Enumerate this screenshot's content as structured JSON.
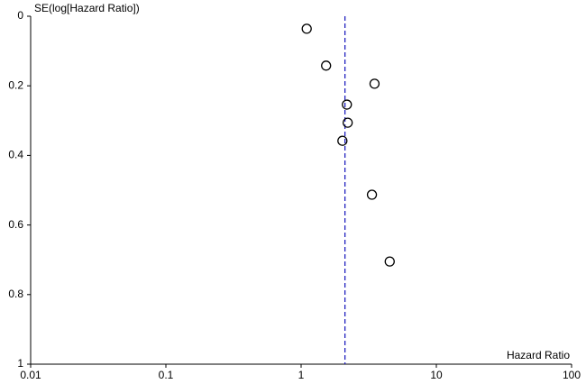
{
  "chart_data": {
    "type": "scatter",
    "x_label": "Hazard Ratio",
    "y_label": "SE(log[Hazard Ratio])",
    "x": [
      1.1,
      1.53,
      3.49,
      2.18,
      2.21,
      2.02,
      3.34,
      4.52
    ],
    "values": [
      0.036,
      0.142,
      0.194,
      0.254,
      0.306,
      0.358,
      0.513,
      0.705
    ],
    "color": "#000000",
    "xscale": "log",
    "y_inverted": true,
    "xlim": [
      0.01,
      100
    ],
    "xticks": [
      0.01,
      0.1,
      1,
      10,
      100
    ],
    "ylim": [
      0,
      1
    ],
    "yticks": [
      0,
      0.2,
      0.4,
      0.6,
      0.8,
      1
    ],
    "reference_line": 2.11,
    "reference_color": "#1f1fbf"
  }
}
